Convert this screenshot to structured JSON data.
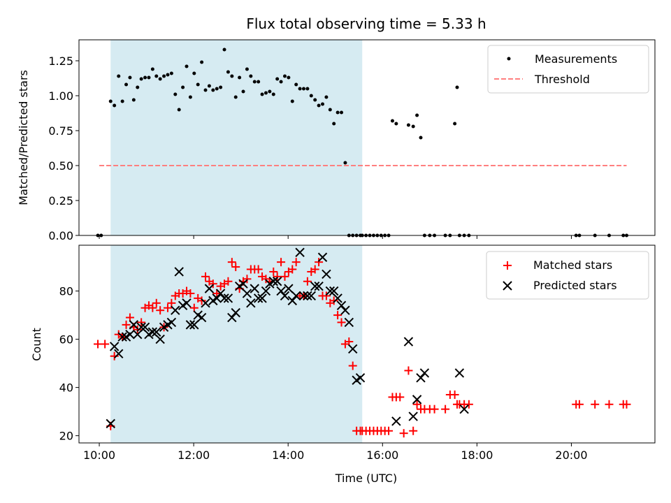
{
  "chart_data": [
    {
      "type": "scatter",
      "title": "Flux total observing time = 5.33 h",
      "xlabel": "",
      "ylabel": "Matched/Predicted stars",
      "xlim": [
        9.57,
        21.77
      ],
      "ylim": [
        0.0,
        1.4
      ],
      "yticks": [
        0.0,
        0.25,
        0.5,
        0.75,
        1.0,
        1.25
      ],
      "ytick_labels": [
        "0.00",
        "0.25",
        "0.50",
        "0.75",
        "1.00",
        "1.25"
      ],
      "xticks": [
        10,
        12,
        14,
        16,
        18,
        20
      ],
      "xtick_labels": [
        "",
        "",
        "",
        "",
        "",
        ""
      ],
      "shaded_span": [
        10.24,
        15.57
      ],
      "grid": false,
      "legend_location": "upper right",
      "legend": [
        {
          "label": "Measurements",
          "marker": "dot",
          "color": "#000000"
        },
        {
          "label": "Threshold",
          "marker": "dashed-line",
          "color": "#ff7f7f"
        }
      ],
      "threshold": {
        "x": [
          10.0,
          21.17
        ],
        "y": 0.5
      },
      "series": [
        {
          "name": "Measurements",
          "x": [
            9.97,
            10.04,
            10.24,
            10.32,
            10.41,
            10.49,
            10.57,
            10.65,
            10.73,
            10.81,
            10.89,
            10.97,
            11.05,
            11.13,
            11.21,
            11.29,
            11.37,
            11.45,
            11.53,
            11.61,
            11.69,
            11.77,
            11.85,
            11.93,
            12.01,
            12.09,
            12.17,
            12.25,
            12.33,
            12.41,
            12.49,
            12.57,
            12.65,
            12.73,
            12.81,
            12.89,
            12.97,
            13.05,
            13.13,
            13.21,
            13.29,
            13.37,
            13.45,
            13.53,
            13.61,
            13.69,
            13.77,
            13.85,
            13.93,
            14.01,
            14.09,
            14.17,
            14.25,
            14.33,
            14.41,
            14.49,
            14.57,
            14.65,
            14.73,
            14.81,
            14.89,
            14.97,
            15.05,
            15.13,
            15.21,
            15.29,
            15.37,
            15.45,
            15.53,
            15.57,
            15.65,
            15.73,
            15.81,
            15.89,
            15.97,
            16.05,
            16.13,
            16.21,
            16.29,
            16.55,
            16.65,
            16.73,
            16.81,
            16.89,
            17.0,
            17.1,
            17.33,
            17.43,
            17.53,
            17.58,
            17.63,
            17.73,
            17.83,
            20.1,
            20.17,
            20.5,
            20.8,
            21.1,
            21.17
          ],
          "y": [
            0,
            0,
            0.96,
            0.93,
            1.14,
            0.96,
            1.08,
            1.13,
            0.97,
            1.06,
            1.12,
            1.13,
            1.13,
            1.19,
            1.14,
            1.12,
            1.14,
            1.15,
            1.16,
            1.01,
            0.9,
            1.06,
            1.21,
            0.99,
            1.16,
            1.08,
            1.24,
            1.04,
            1.07,
            1.04,
            1.05,
            1.06,
            1.33,
            1.17,
            1.14,
            0.99,
            1.13,
            1.03,
            1.19,
            1.14,
            1.1,
            1.1,
            1.01,
            1.02,
            1.03,
            1.01,
            1.12,
            1.1,
            1.14,
            1.13,
            0.96,
            1.08,
            1.05,
            1.05,
            1.05,
            1.0,
            0.97,
            0.93,
            0.94,
            0.99,
            0.9,
            0.8,
            0.88,
            0.88,
            0.52,
            0,
            0,
            0,
            0,
            0,
            0,
            0,
            0,
            0,
            0,
            0,
            0,
            0.82,
            0.8,
            0.79,
            0.78,
            0.86,
            0.7,
            0,
            0,
            0,
            0,
            0,
            0.8,
            1.06,
            0,
            0,
            0,
            0,
            0,
            0,
            0,
            0,
            0
          ]
        }
      ]
    },
    {
      "type": "scatter",
      "title": "",
      "xlabel": "Time (UTC)",
      "ylabel": "Count",
      "xlim": [
        9.57,
        21.77
      ],
      "ylim": [
        17.0,
        99.0
      ],
      "yticks": [
        20,
        40,
        60,
        80
      ],
      "ytick_labels": [
        "20",
        "40",
        "60",
        "80"
      ],
      "xticks": [
        10,
        12,
        14,
        16,
        18,
        20
      ],
      "xtick_labels": [
        "10:00",
        "12:00",
        "14:00",
        "16:00",
        "18:00",
        "20:00"
      ],
      "shaded_span": [
        10.24,
        15.57
      ],
      "grid": false,
      "legend_location": "upper right",
      "legend": [
        {
          "label": "Matched stars",
          "marker": "plus",
          "color": "#ff0000"
        },
        {
          "label": "Predicted stars",
          "marker": "x",
          "color": "#000000"
        }
      ],
      "series": [
        {
          "name": "Matched stars",
          "marker": "plus",
          "color": "#ff0000",
          "x": [
            9.97,
            10.12,
            10.24,
            10.32,
            10.41,
            10.49,
            10.57,
            10.65,
            10.73,
            10.81,
            10.89,
            10.97,
            11.05,
            11.13,
            11.21,
            11.29,
            11.37,
            11.45,
            11.53,
            11.61,
            11.69,
            11.77,
            11.85,
            11.93,
            12.01,
            12.09,
            12.17,
            12.25,
            12.33,
            12.41,
            12.49,
            12.57,
            12.65,
            12.73,
            12.81,
            12.89,
            12.97,
            13.05,
            13.13,
            13.21,
            13.29,
            13.37,
            13.45,
            13.53,
            13.61,
            13.69,
            13.77,
            13.85,
            13.93,
            14.01,
            14.09,
            14.17,
            14.25,
            14.33,
            14.41,
            14.49,
            14.57,
            14.65,
            14.73,
            14.81,
            14.89,
            14.97,
            15.05,
            15.13,
            15.21,
            15.29,
            15.37,
            15.45,
            15.53,
            15.57,
            15.65,
            15.73,
            15.81,
            15.89,
            15.97,
            16.05,
            16.13,
            16.21,
            16.29,
            16.37,
            16.45,
            16.55,
            16.65,
            16.73,
            16.81,
            16.89,
            17.0,
            17.1,
            17.33,
            17.43,
            17.53,
            17.58,
            17.63,
            17.73,
            17.83,
            20.1,
            20.17,
            20.5,
            20.8,
            21.1,
            21.17
          ],
          "y": [
            58,
            58,
            24,
            53,
            62,
            61,
            66,
            69,
            65,
            64,
            67,
            73,
            74,
            73,
            75,
            72,
            65,
            73,
            75,
            78,
            79,
            79,
            80,
            79,
            73,
            77,
            76,
            86,
            84,
            83,
            79,
            82,
            83,
            84,
            92,
            90,
            81,
            84,
            85,
            89,
            89,
            89,
            86,
            85,
            84,
            88,
            86,
            92,
            86,
            88,
            89,
            92,
            78,
            78,
            84,
            88,
            89,
            92,
            78,
            78,
            75,
            76,
            70,
            67,
            58,
            59,
            49,
            22,
            22,
            22,
            22,
            22,
            22,
            22,
            22,
            22,
            22,
            36,
            36,
            36,
            21,
            47,
            22,
            33,
            31,
            31,
            31,
            31,
            31,
            37,
            37,
            33,
            33,
            33,
            33,
            33,
            33,
            33,
            33,
            33,
            33
          ]
        },
        {
          "name": "Predicted stars",
          "marker": "x",
          "color": "#000000",
          "x": [
            10.24,
            10.32,
            10.41,
            10.49,
            10.57,
            10.65,
            10.73,
            10.81,
            10.89,
            10.97,
            11.05,
            11.13,
            11.21,
            11.29,
            11.37,
            11.45,
            11.53,
            11.61,
            11.69,
            11.77,
            11.85,
            11.93,
            12.01,
            12.09,
            12.17,
            12.25,
            12.33,
            12.41,
            12.49,
            12.57,
            12.65,
            12.73,
            12.81,
            12.89,
            12.97,
            13.05,
            13.13,
            13.21,
            13.29,
            13.37,
            13.45,
            13.53,
            13.61,
            13.69,
            13.77,
            13.85,
            13.93,
            14.01,
            14.09,
            14.17,
            14.25,
            14.33,
            14.41,
            14.49,
            14.57,
            14.65,
            14.73,
            14.81,
            14.89,
            14.97,
            15.05,
            15.13,
            15.21,
            15.29,
            15.37,
            15.45,
            15.53,
            16.29,
            16.55,
            16.65,
            16.73,
            16.81,
            16.89,
            17.63,
            17.73
          ],
          "y": [
            25,
            57,
            54,
            61,
            61,
            62,
            66,
            62,
            65,
            65,
            62,
            63,
            63,
            60,
            65,
            66,
            67,
            72,
            88,
            74,
            75,
            66,
            66,
            70,
            69,
            75,
            81,
            76,
            77,
            79,
            77,
            77,
            69,
            71,
            82,
            83,
            79,
            75,
            81,
            77,
            77,
            80,
            83,
            84,
            84,
            80,
            78,
            81,
            76,
            78,
            96,
            78,
            78,
            78,
            82,
            82,
            94,
            87,
            80,
            80,
            77,
            74,
            72,
            67,
            56,
            43,
            44,
            26,
            59,
            28,
            35,
            44,
            46,
            46,
            31
          ]
        }
      ]
    }
  ]
}
